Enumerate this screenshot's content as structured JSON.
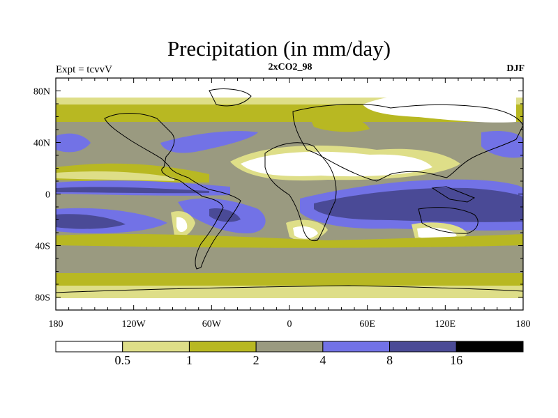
{
  "title": "Precipitation (in mm/day)",
  "experiment_label": "Expt = tcvvV",
  "run_label": "2xCO2_98",
  "season_label": "DJF",
  "lat_ticks": [
    "80N",
    "40N",
    "0",
    "40S",
    "80S"
  ],
  "lon_ticks": [
    "180",
    "120W",
    "60W",
    "0",
    "60E",
    "120E",
    "180"
  ],
  "colorbar": {
    "labels": [
      "0.5",
      "1",
      "2",
      "4",
      "8",
      "16"
    ],
    "colors": [
      "#ffffff",
      "#dede88",
      "#b8b822",
      "#9a9a80",
      "#7272e6",
      "#4a4a96",
      "#000000"
    ]
  }
}
